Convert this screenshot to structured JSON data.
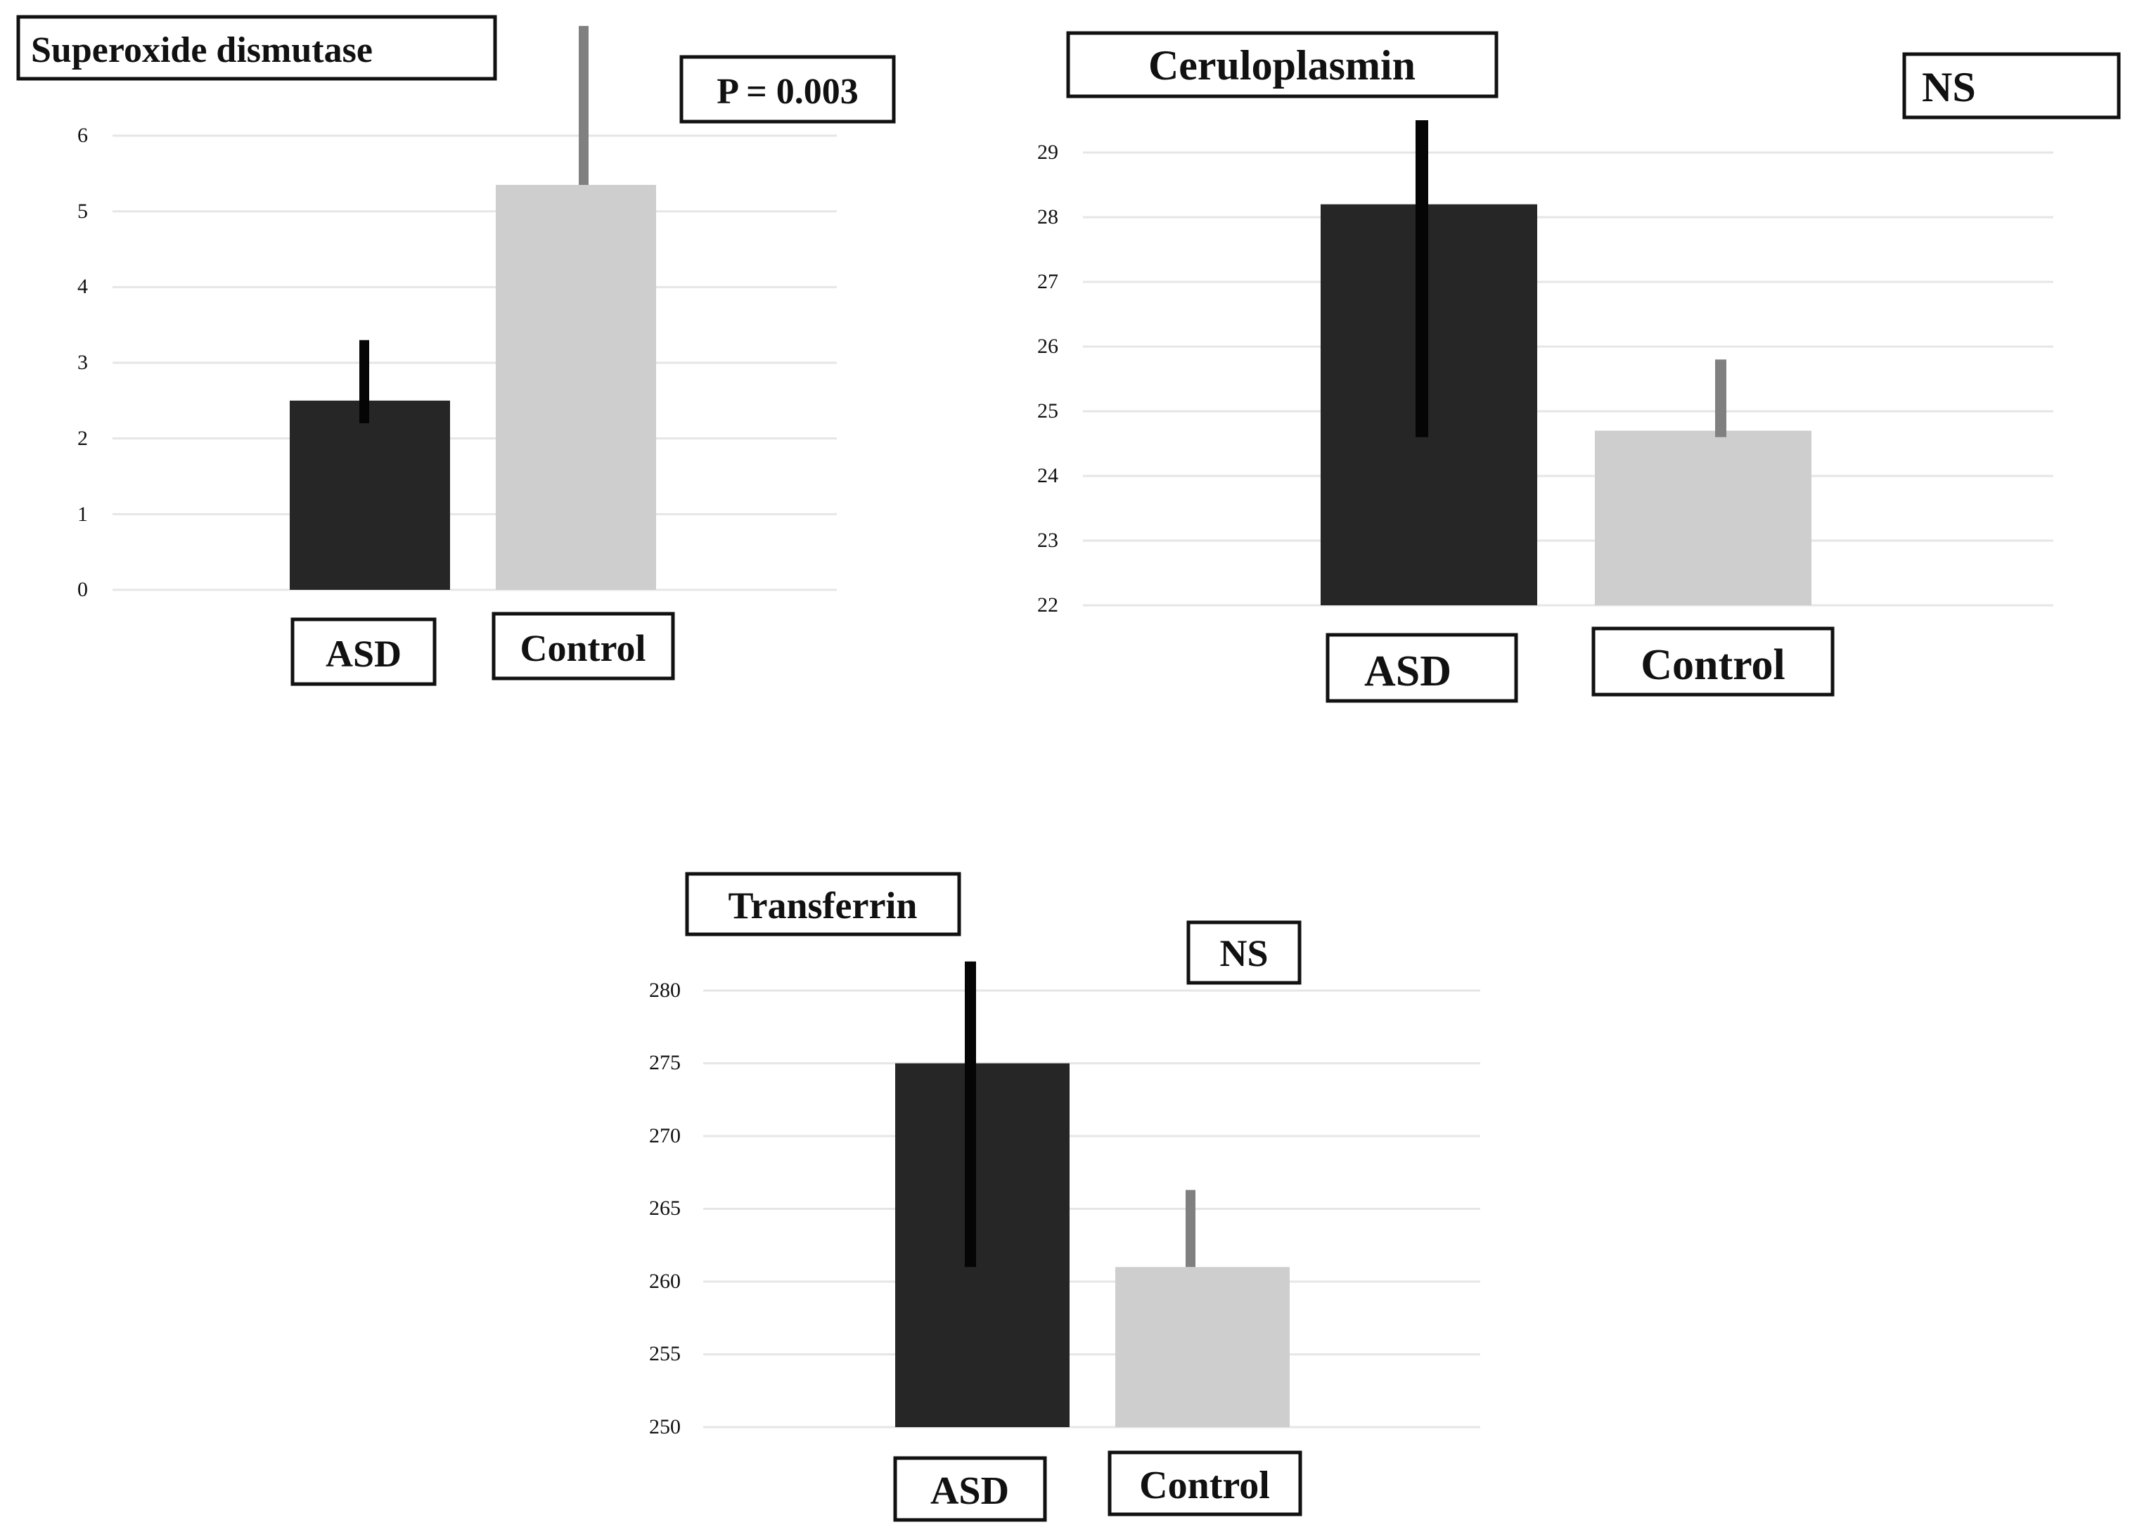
{
  "colors": {
    "asd": "#262626",
    "control": "#cfcecf",
    "asd_error": "#050505",
    "control_error": "#808080",
    "grid": "#e6e6e6",
    "box_border": "#111111"
  },
  "chart_data": [
    {
      "type": "bar",
      "title": "Superoxide dismutase",
      "annotation": "P = 0.003",
      "categories": [
        "ASD",
        "Control"
      ],
      "values": [
        2.5,
        5.35
      ],
      "error_upper": [
        3.3,
        7.45
      ],
      "error_lower": [
        2.2,
        5.35
      ],
      "ylim": [
        0,
        6
      ],
      "yticks": [
        0,
        1,
        2,
        3,
        4,
        5,
        6
      ],
      "yticklabels": [
        "0",
        "1",
        "2",
        "3",
        "4",
        "5",
        "6"
      ],
      "xlabel": "",
      "ylabel": "",
      "grid": true
    },
    {
      "type": "bar",
      "title": "Ceruloplasmin",
      "annotation": "NS",
      "categories": [
        "ASD",
        "Control"
      ],
      "values": [
        28.2,
        24.7
      ],
      "error_upper": [
        29.5,
        25.8
      ],
      "error_lower": [
        24.6,
        24.6
      ],
      "ylim": [
        22,
        29
      ],
      "yticks": [
        22,
        23,
        24,
        25,
        26,
        27,
        28,
        29
      ],
      "yticklabels": [
        "22",
        "23",
        "24",
        "25",
        "26",
        "27",
        "28",
        "29"
      ],
      "xlabel": "",
      "ylabel": "",
      "grid": true
    },
    {
      "type": "bar",
      "title": "Transferrin",
      "annotation": "NS",
      "categories": [
        "ASD",
        "Control"
      ],
      "values": [
        275,
        261
      ],
      "error_upper": [
        282,
        266.3
      ],
      "error_lower": [
        261,
        261
      ],
      "ylim": [
        250,
        280
      ],
      "yticks": [
        250,
        255,
        260,
        265,
        270,
        275,
        280
      ],
      "yticklabels": [
        "250",
        "255",
        "260",
        "265",
        "270",
        "275",
        "280"
      ],
      "xlabel": "",
      "ylabel": "",
      "grid": true
    }
  ]
}
